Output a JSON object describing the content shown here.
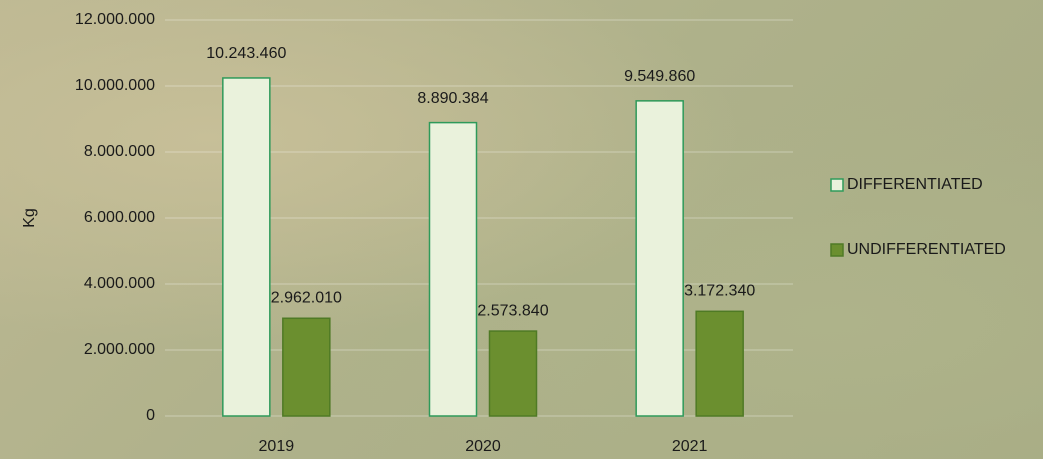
{
  "chart_data": {
    "type": "bar",
    "y_label": "Kg",
    "categories": [
      "2019",
      "2020",
      "2021"
    ],
    "series": [
      {
        "name": "DIFFERENTIATED",
        "color": "#eaf2dc",
        "edge_color": "#2e9a5a",
        "values": [
          10243460,
          8890384,
          9549860
        ],
        "value_labels": [
          "10.243.460",
          "8.890.384",
          "9.549.860"
        ]
      },
      {
        "name": "UNDIFFERENTIATED",
        "color": "#6b8f2f",
        "edge_color": "#4f7a25",
        "values": [
          2962010,
          2573840,
          3172340
        ],
        "value_labels": [
          "2.962.010",
          "2.573.840",
          "3.172.340"
        ]
      }
    ],
    "ylim": [
      0,
      12000000
    ],
    "yticks": [
      {
        "value": 0,
        "label": "0"
      },
      {
        "value": 2000000,
        "label": "2.000.000"
      },
      {
        "value": 4000000,
        "label": "4.000.000"
      },
      {
        "value": 6000000,
        "label": "6.000.000"
      },
      {
        "value": 8000000,
        "label": "8.000.000"
      },
      {
        "value": 10000000,
        "label": "10.000.000"
      },
      {
        "value": 12000000,
        "label": "12.000.000"
      }
    ],
    "grid": true,
    "legend": "right"
  }
}
